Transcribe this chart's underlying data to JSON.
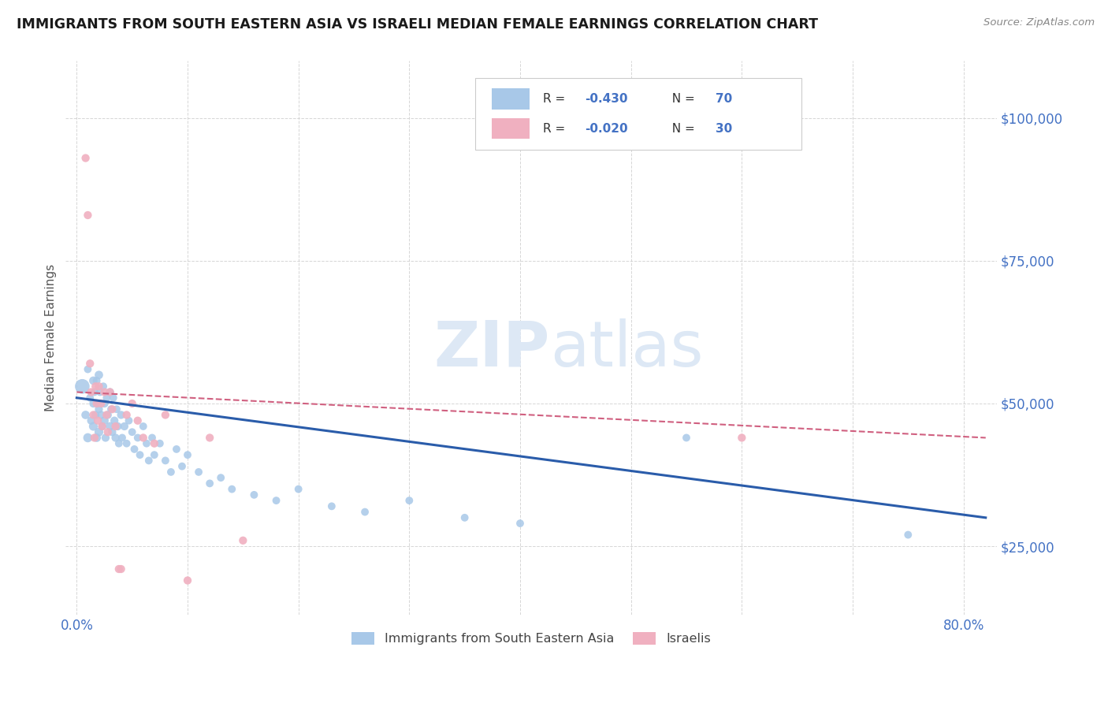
{
  "title": "IMMIGRANTS FROM SOUTH EASTERN ASIA VS ISRAELI MEDIAN FEMALE EARNINGS CORRELATION CHART",
  "source": "Source: ZipAtlas.com",
  "ylabel": "Median Female Earnings",
  "watermark": "ZIPatlas",
  "y_ticks": [
    25000,
    50000,
    75000,
    100000
  ],
  "y_tick_labels": [
    "$25,000",
    "$50,000",
    "$75,000",
    "$100,000"
  ],
  "x_ticks": [
    0.0,
    0.1,
    0.2,
    0.3,
    0.4,
    0.5,
    0.6,
    0.7,
    0.8
  ],
  "x_tick_labels": [
    "0.0%",
    "",
    "",
    "",
    "",
    "",
    "",
    "",
    "80.0%"
  ],
  "ylim": [
    13000,
    110000
  ],
  "xlim": [
    -0.01,
    0.83
  ],
  "series1_color": "#a8c8e8",
  "series2_color": "#f0b0c0",
  "trendline1_color": "#2a5caa",
  "trendline2_color": "#d06080",
  "background_color": "#ffffff",
  "title_color": "#1a1a1a",
  "axis_color": "#4472c4",
  "watermark_color": "#dde8f5",
  "series1_x": [
    0.005,
    0.008,
    0.01,
    0.01,
    0.012,
    0.013,
    0.015,
    0.015,
    0.015,
    0.016,
    0.017,
    0.018,
    0.018,
    0.019,
    0.02,
    0.02,
    0.02,
    0.021,
    0.022,
    0.023,
    0.024,
    0.025,
    0.025,
    0.026,
    0.027,
    0.028,
    0.03,
    0.03,
    0.031,
    0.032,
    0.033,
    0.034,
    0.035,
    0.036,
    0.037,
    0.038,
    0.04,
    0.041,
    0.043,
    0.045,
    0.047,
    0.05,
    0.052,
    0.055,
    0.057,
    0.06,
    0.063,
    0.065,
    0.068,
    0.07,
    0.075,
    0.08,
    0.085,
    0.09,
    0.095,
    0.1,
    0.11,
    0.12,
    0.13,
    0.14,
    0.16,
    0.18,
    0.2,
    0.23,
    0.26,
    0.3,
    0.35,
    0.4,
    0.55,
    0.75
  ],
  "series1_y": [
    53000,
    48000,
    56000,
    44000,
    51000,
    47000,
    54000,
    50000,
    46000,
    52000,
    48000,
    54000,
    44000,
    50000,
    55000,
    49000,
    45000,
    52000,
    48000,
    46000,
    53000,
    50000,
    47000,
    44000,
    51000,
    48000,
    52000,
    46000,
    49000,
    45000,
    51000,
    47000,
    44000,
    49000,
    46000,
    43000,
    48000,
    44000,
    46000,
    43000,
    47000,
    45000,
    42000,
    44000,
    41000,
    46000,
    43000,
    40000,
    44000,
    41000,
    43000,
    40000,
    38000,
    42000,
    39000,
    41000,
    38000,
    36000,
    37000,
    35000,
    34000,
    33000,
    35000,
    32000,
    31000,
    33000,
    30000,
    29000,
    44000,
    27000
  ],
  "series1_sizes": [
    180,
    60,
    50,
    70,
    50,
    55,
    60,
    55,
    65,
    50,
    55,
    50,
    60,
    50,
    60,
    55,
    65,
    50,
    55,
    55,
    50,
    55,
    60,
    55,
    50,
    55,
    55,
    60,
    50,
    55,
    50,
    55,
    55,
    50,
    55,
    50,
    55,
    50,
    55,
    50,
    50,
    50,
    50,
    50,
    50,
    50,
    50,
    50,
    50,
    50,
    50,
    50,
    50,
    50,
    50,
    50,
    50,
    50,
    50,
    50,
    50,
    50,
    50,
    50,
    50,
    50,
    50,
    50,
    50,
    50
  ],
  "series2_x": [
    0.008,
    0.01,
    0.012,
    0.013,
    0.015,
    0.016,
    0.017,
    0.018,
    0.019,
    0.02,
    0.022,
    0.023,
    0.025,
    0.027,
    0.028,
    0.03,
    0.032,
    0.035,
    0.038,
    0.04,
    0.045,
    0.05,
    0.055,
    0.06,
    0.07,
    0.08,
    0.1,
    0.12,
    0.15,
    0.6
  ],
  "series2_y": [
    93000,
    83000,
    57000,
    52000,
    48000,
    44000,
    53000,
    50000,
    47000,
    53000,
    50000,
    46000,
    52000,
    48000,
    45000,
    52000,
    49000,
    46000,
    21000,
    21000,
    48000,
    50000,
    47000,
    44000,
    43000,
    48000,
    19000,
    44000,
    26000,
    44000
  ],
  "series2_sizes": [
    55,
    55,
    55,
    55,
    55,
    55,
    55,
    55,
    55,
    55,
    55,
    55,
    55,
    55,
    55,
    55,
    55,
    55,
    55,
    55,
    55,
    55,
    55,
    55,
    55,
    55,
    55,
    55,
    55,
    55
  ],
  "trendline1_x0": 0.0,
  "trendline1_x1": 0.82,
  "trendline1_y0": 51000,
  "trendline1_y1": 30000,
  "trendline2_x0": 0.0,
  "trendline2_x1": 0.82,
  "trendline2_y0": 52000,
  "trendline2_y1": 44000
}
